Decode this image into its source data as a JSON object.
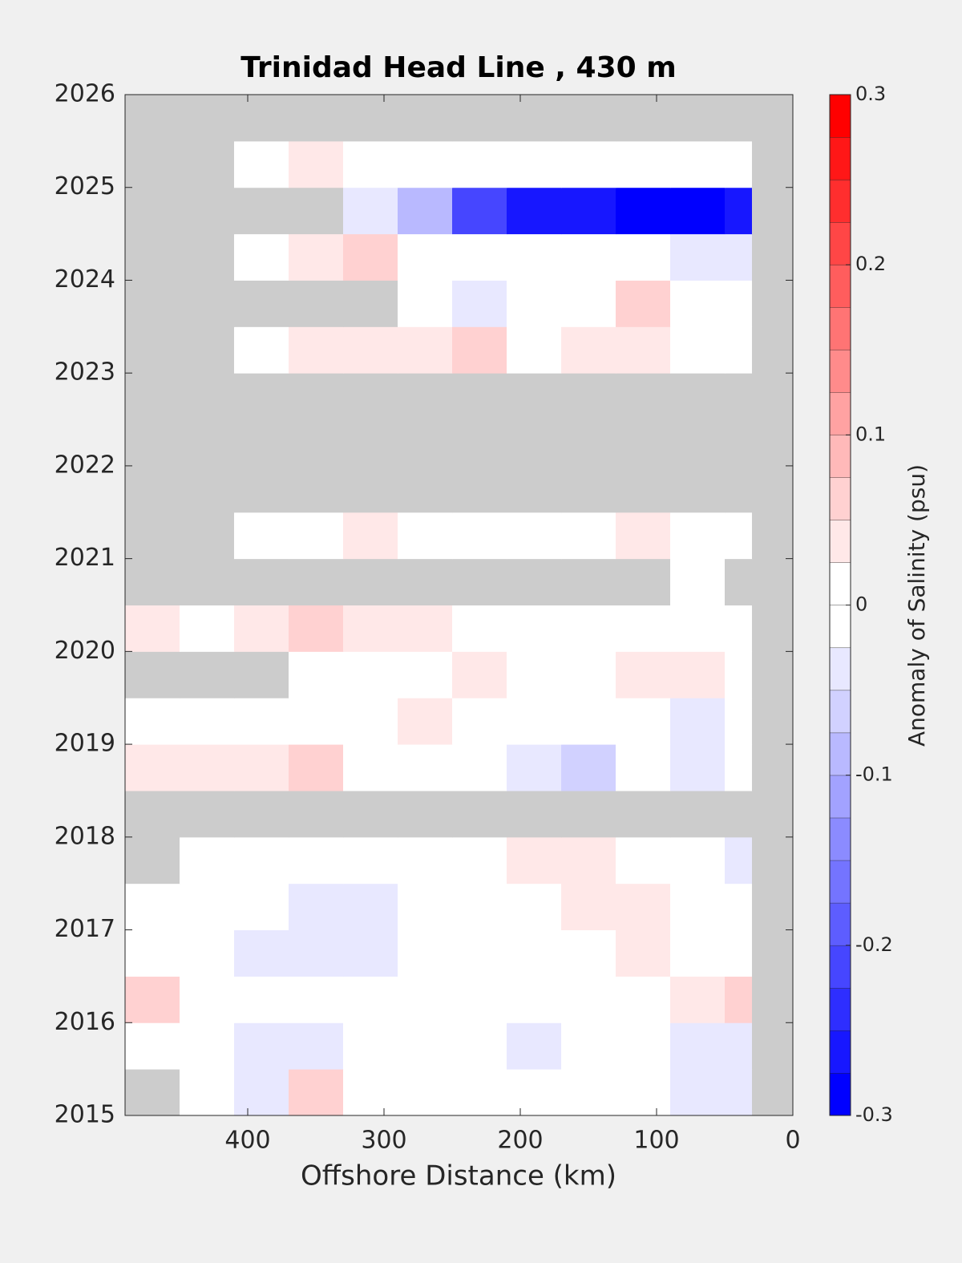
{
  "chart_data": {
    "type": "contour",
    "title": "Trinidad Head Line , 430 m",
    "xlabel": "Offshore Distance (km)",
    "colorbar_label": "Anomaly of Salinity (psu)",
    "xlim": [
      490,
      0
    ],
    "xticks": [
      400,
      300,
      200,
      100,
      0
    ],
    "ylim": [
      2015,
      2026
    ],
    "yticks": [
      2015,
      2016,
      2017,
      2018,
      2019,
      2020,
      2021,
      2022,
      2023,
      2024,
      2025,
      2026
    ],
    "clim": [
      -0.3,
      0.3
    ],
    "cticks": [
      -0.3,
      -0.2,
      -0.1,
      0,
      0.1,
      0.2,
      0.3
    ],
    "levels": 24,
    "missing_color": "#cccccc",
    "xbins": [
      490,
      450,
      410,
      370,
      330,
      290,
      250,
      210,
      170,
      130,
      90,
      50,
      30,
      0
    ],
    "ybins": [
      2015,
      2015.5,
      2016,
      2016.5,
      2017,
      2017.5,
      2018,
      2018.5,
      2019,
      2019.5,
      2020,
      2020.5,
      2021,
      2021.5,
      2022,
      2022.5,
      2023,
      2023.5,
      2024,
      2024.5,
      2025,
      2025.5,
      2026
    ],
    "z": [
      [
        null,
        -0.02,
        -0.03,
        0.06,
        -0.02,
        -0.01,
        0,
        -0.02,
        0,
        -0.02,
        -0.04,
        -0.03,
        null
      ],
      [
        0,
        -0.02,
        -0.03,
        -0.03,
        -0.02,
        -0.01,
        -0.02,
        -0.03,
        -0.02,
        0,
        -0.03,
        -0.04,
        null
      ],
      [
        0.05,
        0.01,
        0,
        -0.02,
        0,
        0.02,
        0,
        -0.01,
        0,
        0.02,
        0.03,
        0.05,
        null
      ],
      [
        -0.02,
        -0.02,
        -0.03,
        -0.04,
        -0.03,
        0,
        0.02,
        0,
        0.01,
        0.03,
        0.02,
        0.02,
        null
      ],
      [
        0,
        -0.01,
        -0.02,
        -0.03,
        -0.03,
        -0.02,
        0,
        0.02,
        0.03,
        0.03,
        0.02,
        0.02,
        null
      ],
      [
        null,
        0,
        0,
        0,
        0.02,
        0,
        0.02,
        0.04,
        0.04,
        0.02,
        -0.02,
        -0.05,
        null
      ],
      [
        null,
        null,
        null,
        null,
        null,
        null,
        null,
        null,
        null,
        null,
        null,
        null,
        null
      ],
      [
        0.04,
        0.03,
        0.03,
        0.05,
        0.02,
        0,
        -0.02,
        -0.05,
        -0.06,
        -0.02,
        -0.04,
        0,
        null
      ],
      [
        0,
        0.02,
        0,
        0.02,
        0.02,
        0.04,
        0.01,
        0,
        0,
        0,
        -0.03,
        -0.02,
        null
      ],
      [
        null,
        null,
        null,
        0.01,
        0.02,
        0,
        0.03,
        0.02,
        0,
        0.03,
        0.04,
        0.02,
        null
      ],
      [
        0.03,
        0.02,
        0.04,
        0.05,
        0.04,
        0.03,
        0.02,
        -0.01,
        -0.02,
        0,
        -0.02,
        0.02,
        null
      ],
      [
        null,
        null,
        null,
        null,
        null,
        null,
        null,
        null,
        null,
        null,
        0,
        null,
        null
      ],
      [
        null,
        null,
        0,
        0.02,
        0.03,
        0.02,
        0.01,
        0.02,
        0.01,
        0.04,
        0,
        -0.02,
        null
      ],
      [
        null,
        null,
        null,
        null,
        null,
        null,
        null,
        null,
        null,
        null,
        null,
        null,
        null
      ],
      [
        null,
        null,
        null,
        null,
        null,
        null,
        null,
        null,
        null,
        null,
        null,
        null,
        null
      ],
      [
        null,
        null,
        null,
        null,
        null,
        null,
        null,
        null,
        null,
        null,
        null,
        null,
        null
      ],
      [
        null,
        null,
        0,
        0.03,
        0.04,
        0.04,
        0.05,
        0.02,
        0.03,
        0.03,
        0.02,
        0,
        null
      ],
      [
        null,
        null,
        null,
        null,
        null,
        -0.02,
        -0.04,
        0.02,
        0,
        0.07,
        0.02,
        -0.01,
        null
      ],
      [
        null,
        null,
        0.02,
        0.03,
        0.05,
        0.01,
        -0.01,
        -0.02,
        0,
        0,
        -0.03,
        -0.04,
        null
      ],
      [
        null,
        null,
        null,
        null,
        -0.03,
        -0.1,
        -0.2,
        -0.26,
        -0.27,
        -0.28,
        -0.28,
        -0.27,
        null
      ],
      [
        null,
        null,
        0.02,
        0.03,
        0.02,
        0.02,
        0.02,
        0,
        0.02,
        0.02,
        0.01,
        0.01,
        null
      ],
      [
        null,
        null,
        null,
        null,
        null,
        null,
        null,
        null,
        null,
        null,
        null,
        null,
        null
      ]
    ]
  }
}
